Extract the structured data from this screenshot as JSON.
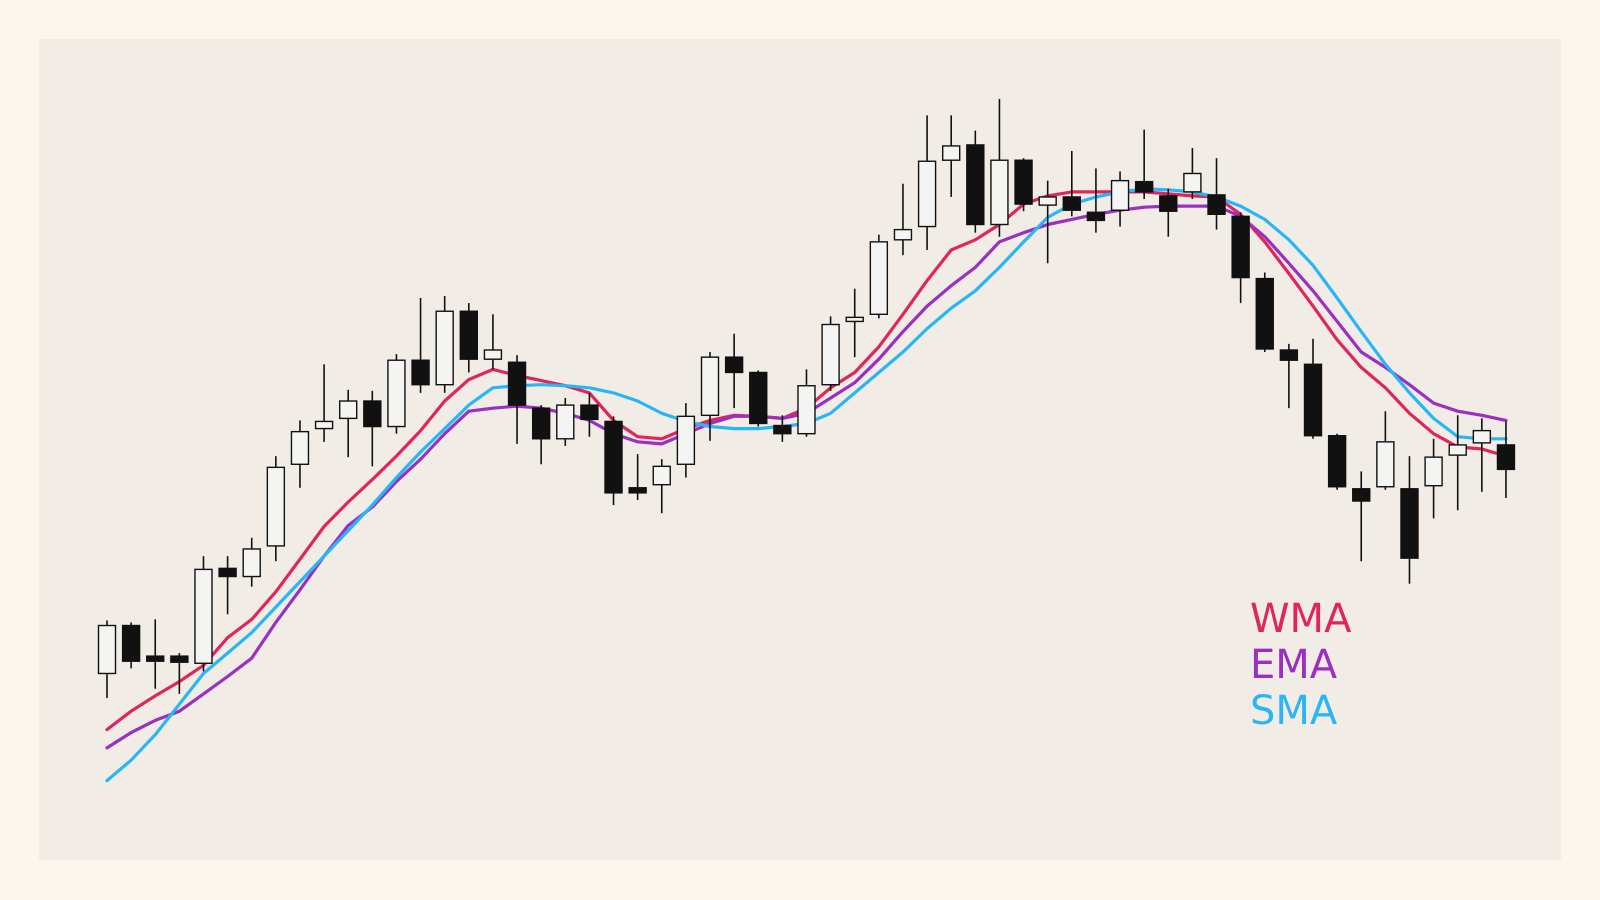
{
  "chart_data": {
    "type": "candlestick",
    "up_color": "#f4f4f2",
    "down_color": "#111111",
    "open": [
      240,
      287,
      257,
      257,
      250,
      343,
      335,
      365,
      445,
      480,
      490,
      507,
      482,
      547,
      523,
      595,
      548,
      545,
      500,
      470,
      503,
      487,
      422,
      425,
      445,
      493,
      550,
      535,
      483,
      475,
      523,
      585,
      592,
      665,
      678,
      743,
      758,
      680,
      743,
      699,
      707,
      692,
      694,
      722,
      708,
      712,
      709,
      688,
      627,
      557,
      543,
      473,
      421,
      423,
      421,
      424,
      454,
      466,
      464
    ],
    "high": [
      292,
      290,
      293,
      260,
      355,
      355,
      373,
      453,
      488,
      543,
      518,
      517,
      553,
      608,
      610,
      603,
      592,
      552,
      503,
      510,
      515,
      492,
      455,
      450,
      505,
      555,
      573,
      537,
      493,
      538,
      590,
      617,
      670,
      720,
      787,
      787,
      772,
      803,
      745,
      723,
      752,
      735,
      732,
      773,
      715,
      755,
      745,
      692,
      633,
      563,
      568,
      475,
      438,
      497,
      453,
      470,
      493,
      490,
      487
    ],
    "low": [
      216,
      245,
      225,
      220,
      242,
      298,
      325,
      350,
      422,
      467,
      452,
      443,
      475,
      515,
      515,
      535,
      538,
      465,
      445,
      463,
      472,
      405,
      410,
      397,
      432,
      468,
      500,
      482,
      467,
      472,
      517,
      550,
      588,
      650,
      655,
      707,
      672,
      668,
      693,
      642,
      688,
      672,
      678,
      705,
      668,
      705,
      675,
      603,
      555,
      500,
      470,
      420,
      350,
      420,
      328,
      392,
      400,
      418,
      412
    ],
    "close": [
      287,
      252,
      252,
      251,
      342,
      335,
      362,
      442,
      477,
      487,
      507,
      482,
      547,
      523,
      595,
      548,
      557,
      503,
      470,
      503,
      489,
      417,
      417,
      443,
      492,
      550,
      535,
      485,
      475,
      522,
      582,
      589,
      663,
      675,
      742,
      757,
      680,
      743,
      700,
      707,
      694,
      684,
      723,
      712,
      693,
      730,
      690,
      628,
      558,
      547,
      473,
      423,
      409,
      467,
      353,
      452,
      464,
      478,
      440
    ],
    "series": [
      {
        "name": "WMA",
        "color": "#e0245e",
        "values": [
          185,
          203,
          218,
          232,
          248,
          275,
          293,
          320,
          352,
          384,
          408,
          430,
          453,
          478,
          507,
          528,
          538,
          532,
          527,
          522,
          515,
          488,
          472,
          470,
          480,
          488,
          493,
          492,
          490,
          500,
          520,
          535,
          560,
          592,
          625,
          655,
          665,
          680,
          700,
          708,
          712,
          712,
          712,
          712,
          710,
          708,
          707,
          690,
          663,
          632,
          600,
          567,
          540,
          520,
          495,
          475,
          462,
          460,
          453
        ]
      },
      {
        "name": "EMA",
        "color": "#9b30c0",
        "values": [
          167,
          182,
          194,
          203,
          220,
          237,
          255,
          290,
          322,
          355,
          385,
          403,
          428,
          450,
          475,
          497,
          500,
          502,
          500,
          495,
          488,
          475,
          467,
          465,
          475,
          485,
          492,
          492,
          490,
          495,
          510,
          525,
          548,
          575,
          600,
          620,
          638,
          663,
          672,
          680,
          685,
          690,
          694,
          697,
          698,
          698,
          698,
          688,
          668,
          642,
          615,
          585,
          555,
          540,
          523,
          505,
          497,
          493,
          488
        ]
      },
      {
        "name": "SMA",
        "color": "#29b6f6",
        "values": [
          135,
          155,
          180,
          210,
          240,
          260,
          280,
          305,
          330,
          355,
          380,
          405,
          432,
          457,
          480,
          503,
          520,
          522,
          523,
          522,
          520,
          515,
          507,
          495,
          487,
          482,
          480,
          480,
          482,
          485,
          495,
          515,
          535,
          555,
          578,
          598,
          615,
          638,
          663,
          687,
          700,
          707,
          712,
          715,
          714,
          712,
          707,
          698,
          685,
          665,
          640,
          608,
          575,
          543,
          515,
          490,
          472,
          470,
          470
        ]
      }
    ]
  }
}
